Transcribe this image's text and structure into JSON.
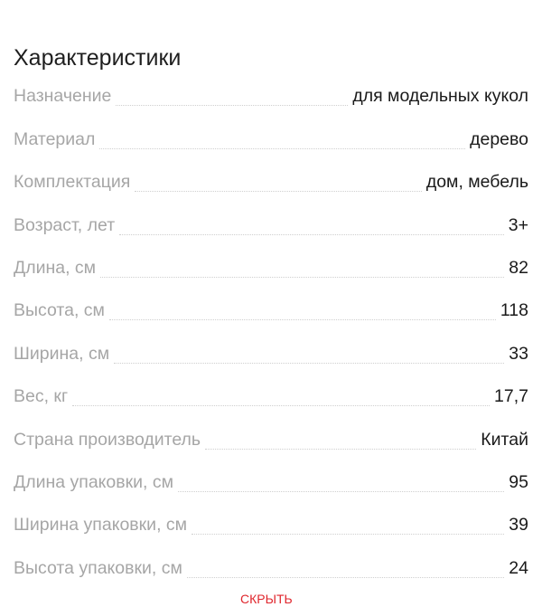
{
  "section": {
    "title": "Характеристики"
  },
  "specs": [
    {
      "label": "Назначение",
      "value": "для модельных кукол"
    },
    {
      "label": "Материал",
      "value": "дерево"
    },
    {
      "label": "Комплектация",
      "value": "дом, мебель"
    },
    {
      "label": "Возраст, лет",
      "value": "3+"
    },
    {
      "label": "Длина, см",
      "value": "82"
    },
    {
      "label": "Высота, см",
      "value": "118"
    },
    {
      "label": "Ширина, см",
      "value": "33"
    },
    {
      "label": "Вес, кг",
      "value": "17,7"
    },
    {
      "label": "Страна производитель",
      "value": "Китай"
    },
    {
      "label": "Длина упаковки, см",
      "value": "95"
    },
    {
      "label": "Ширина упаковки, см",
      "value": "39"
    },
    {
      "label": "Высота упаковки, см",
      "value": "24"
    }
  ],
  "actions": {
    "hide_label": "скрыть"
  },
  "colors": {
    "label": "#a6a6a6",
    "value": "#1a1a1a",
    "link": "#e0262d"
  }
}
